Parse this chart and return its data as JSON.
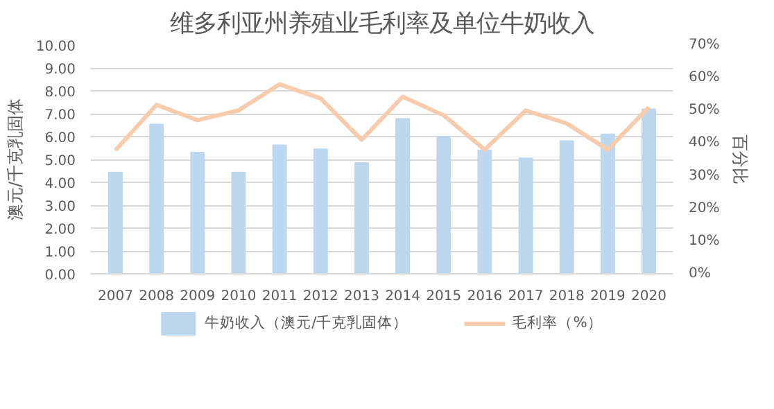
{
  "chart_data": {
    "type": "bar",
    "title": "维多利亚州养殖业毛利率及单位牛奶收入",
    "ylabel": "澳元/千克乳固体",
    "y2label": "百分比",
    "categories": [
      "2007",
      "2008",
      "2009",
      "2010",
      "2011",
      "2012",
      "2013",
      "2014",
      "2015",
      "2016",
      "2017",
      "2018",
      "2019",
      "2020"
    ],
    "series": [
      {
        "name": "牛奶收入（澳元/千克乳固体）",
        "color": "#bdd7ee",
        "values": [
          4.43,
          6.53,
          5.3,
          4.43,
          5.62,
          5.45,
          4.85,
          6.77,
          6.0,
          5.4,
          5.05,
          5.8,
          6.1,
          7.2
        ]
      },
      {
        "name": "毛利率（%）",
        "type": "line",
        "axis": "y2",
        "color": "#f8cbad",
        "values": [
          37.8,
          51.7,
          47,
          50,
          58,
          53.7,
          41,
          54.2,
          48.5,
          38,
          50,
          46,
          38,
          51
        ]
      }
    ],
    "ylim": [
      0,
      10
    ],
    "yticks": [
      {
        "value": 0,
        "label": "0.00"
      },
      {
        "value": 1,
        "label": "1.00"
      },
      {
        "value": 2,
        "label": "2.00"
      },
      {
        "value": 3,
        "label": "3.00"
      },
      {
        "value": 4,
        "label": "4.00"
      },
      {
        "value": 5,
        "label": "5.00"
      },
      {
        "value": 6,
        "label": "6.00"
      },
      {
        "value": 7,
        "label": "7.00"
      },
      {
        "value": 8,
        "label": "8.00"
      },
      {
        "value": 9,
        "label": "9.00"
      },
      {
        "value": 10,
        "label": "10.00"
      }
    ],
    "y2lim": [
      0,
      70
    ],
    "y2ticks": [
      {
        "value": 0,
        "label": "0%"
      },
      {
        "value": 10,
        "label": "10%"
      },
      {
        "value": 20,
        "label": "20%"
      },
      {
        "value": 30,
        "label": "30%"
      },
      {
        "value": 40,
        "label": "40%"
      },
      {
        "value": 50,
        "label": "50%"
      },
      {
        "value": 60,
        "label": "60%"
      },
      {
        "value": 70,
        "label": "70%"
      }
    ],
    "grid": "y",
    "legend": "bottom",
    "marker": "none",
    "line_style": "solid"
  }
}
